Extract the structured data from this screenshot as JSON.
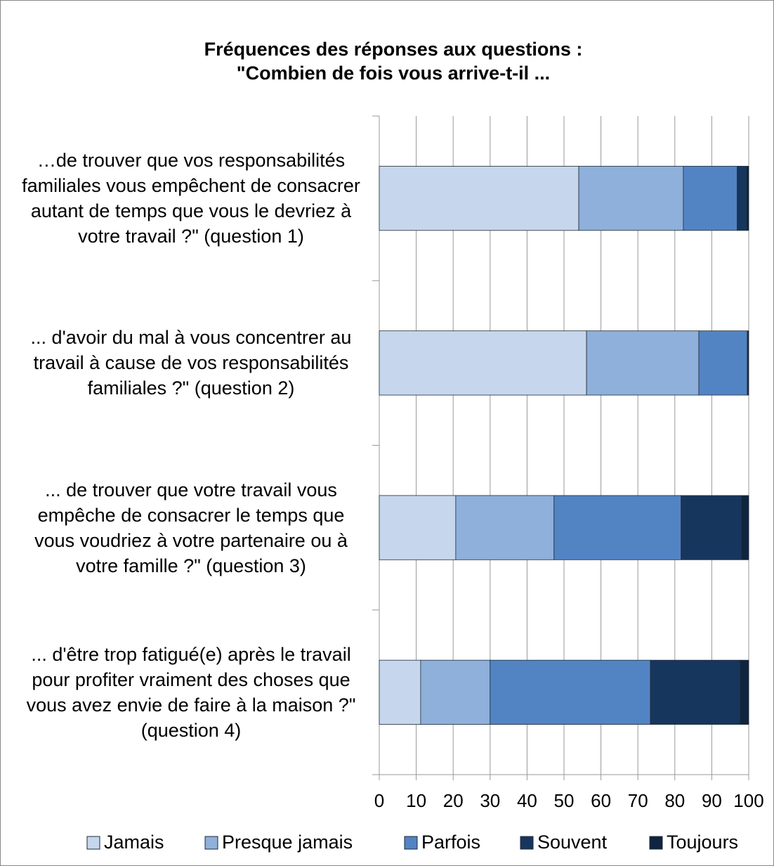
{
  "chart_data": {
    "type": "stacked-barh",
    "title": "Fréquences des réponses aux questions :",
    "subtitle": "\"Combien de fois vous arrive-t-il ...",
    "categories": [
      "…de trouver que vos responsabilités familiales vous empêchent de consacrer autant de temps que vous le devriez à votre travail ?\" (question 1)",
      "... d'avoir du mal à vous concentrer au travail à cause de vos responsabilités familiales ?\" (question 2)",
      "... de trouver que votre travail vous empêche de consacrer le temps que vous voudriez à votre partenaire ou à votre famille ?\" (question 3)",
      "... d'être trop fatigué(e) après le travail pour profiter vraiment des choses que vous avez envie de faire à la maison ?\" (question 4)"
    ],
    "series": [
      {
        "name": "Jamais",
        "color": "#c6d7ed",
        "values": [
          54,
          56.1,
          20.7,
          11.2
        ]
      },
      {
        "name": "Presque jamais",
        "color": "#8eb0da",
        "values": [
          28.3,
          30.4,
          26.6,
          18.8
        ]
      },
      {
        "name": "Parfois",
        "color": "#5284c4",
        "values": [
          14.6,
          13.1,
          34.4,
          43.4
        ]
      },
      {
        "name": "Souvent",
        "color": "#17365d",
        "values": [
          2.6,
          0.3,
          16.4,
          24.3
        ]
      },
      {
        "name": "Toujours",
        "color": "#0f243e",
        "values": [
          0.5,
          0.1,
          1.9,
          2.3
        ]
      }
    ],
    "xlim": [
      0,
      100
    ],
    "xticks": [
      0,
      10,
      20,
      30,
      40,
      50,
      60,
      70,
      80,
      90,
      100
    ],
    "grid": true,
    "legend": "bottom"
  }
}
